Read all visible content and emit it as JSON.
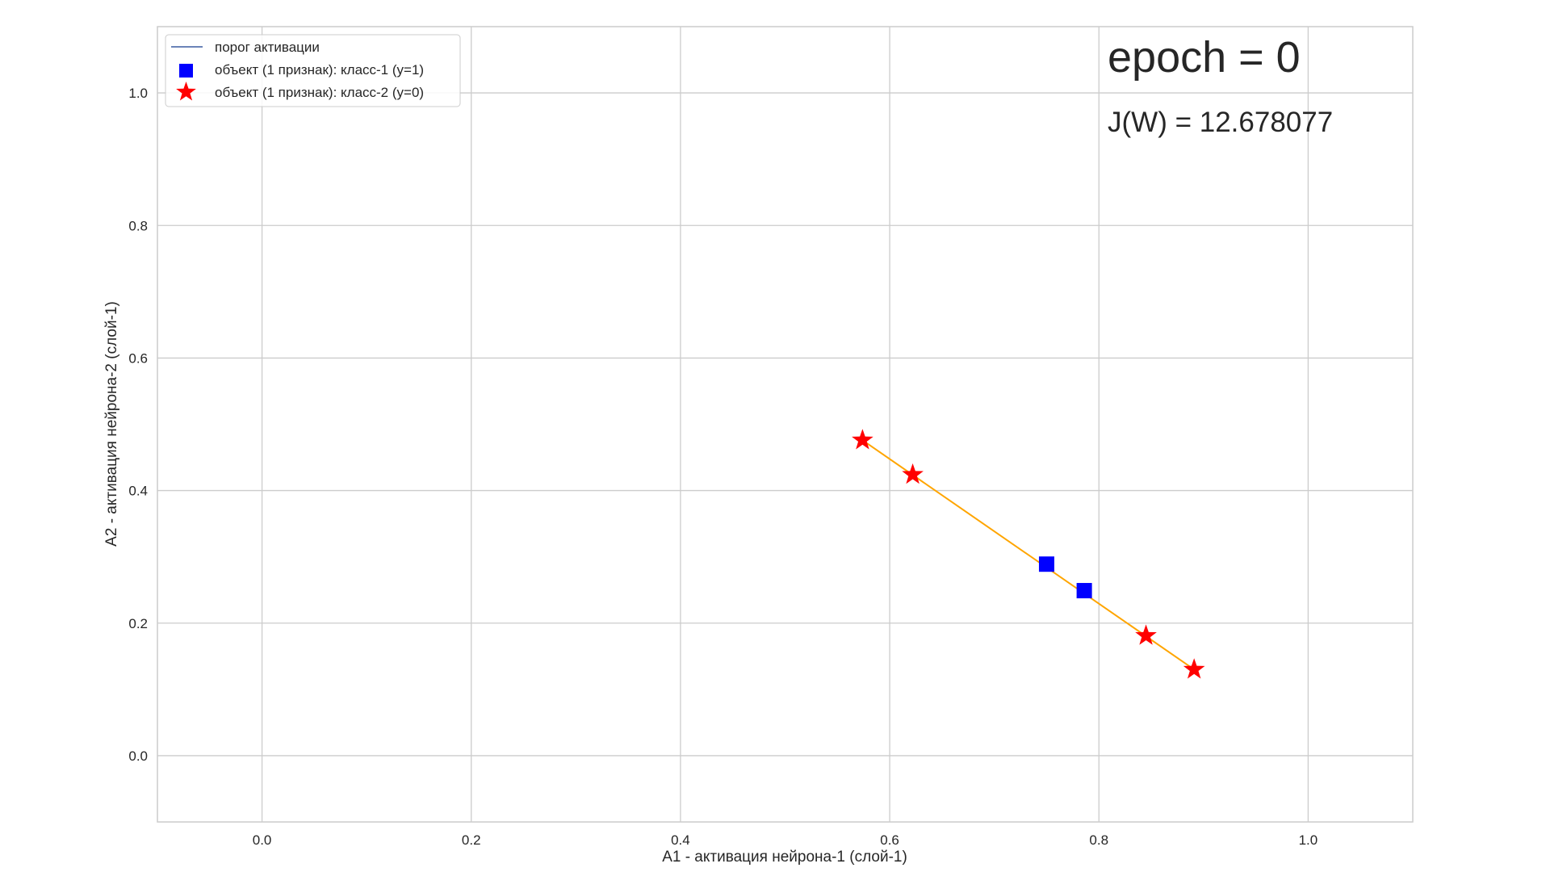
{
  "chart_data": {
    "type": "scatter",
    "xlabel": "A1 - активация нейрона-1 (слой-1)",
    "ylabel": "A2 - активация нейрона-2 (слой-1)",
    "xlim": [
      -0.1,
      1.1
    ],
    "ylim": [
      -0.1,
      1.1
    ],
    "x_ticks": [
      0.0,
      0.2,
      0.4,
      0.6,
      0.8,
      1.0
    ],
    "y_ticks": [
      0.0,
      0.2,
      0.4,
      0.6,
      0.8,
      1.0
    ],
    "x_tick_labels": [
      "0.0",
      "0.2",
      "0.4",
      "0.6",
      "0.8",
      "1.0"
    ],
    "y_tick_labels": [
      "0.0",
      "0.2",
      "0.4",
      "0.6",
      "0.8",
      "1.0"
    ],
    "grid": true,
    "legend_position": "top-left",
    "annotations": {
      "epoch": "epoch = 0",
      "cost": "J(W) = 12.678077"
    },
    "legend": [
      {
        "label": "порог активации",
        "marker": "line",
        "color": "#3a5ba0"
      },
      {
        "label": "объект (1 признак): класс-1 (y=1)",
        "marker": "square",
        "color": "#0000ff"
      },
      {
        "label": "объект (1 признак): класс-2 (y=0)",
        "marker": "star",
        "color": "#ff0000"
      }
    ],
    "line": {
      "color": "#ffa500",
      "points": [
        [
          0.574,
          0.476
        ],
        [
          0.891,
          0.13
        ]
      ]
    },
    "series": [
      {
        "name": "объект (1 признак): класс-1 (y=1)",
        "marker": "square",
        "color": "#0000ff",
        "points": [
          [
            0.75,
            0.289
          ],
          [
            0.786,
            0.249
          ]
        ]
      },
      {
        "name": "объект (1 признак): класс-2 (y=0)",
        "marker": "star",
        "color": "#ff0000",
        "points": [
          [
            0.574,
            0.476
          ],
          [
            0.622,
            0.424
          ],
          [
            0.845,
            0.181
          ],
          [
            0.891,
            0.13
          ]
        ]
      }
    ]
  }
}
